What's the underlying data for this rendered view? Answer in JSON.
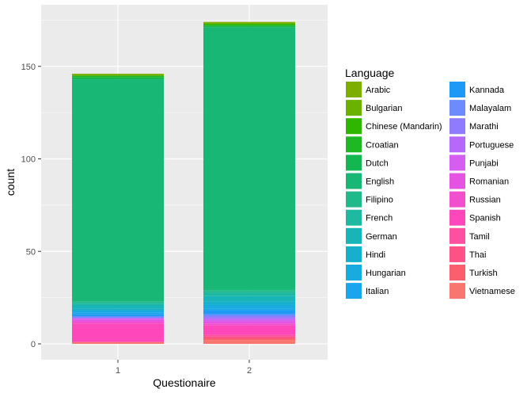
{
  "chart_data": {
    "type": "bar",
    "stacked": true,
    "xlabel": "Questionaire",
    "ylabel": "count",
    "categories": [
      "1",
      "2"
    ],
    "ylim": [
      0,
      180
    ],
    "yticks": [
      0,
      50,
      100,
      150
    ],
    "grid": true,
    "legend": {
      "title": "Language",
      "placement": "right",
      "columns": 2
    },
    "series": [
      {
        "name": "Arabic",
        "color": "#7CAE00",
        "values": [
          1,
          1
        ]
      },
      {
        "name": "Bulgarian",
        "color": "#6BB100",
        "values": [
          0,
          0
        ]
      },
      {
        "name": "Chinese (Mandarin)",
        "color": "#2FB600",
        "values": [
          0,
          1
        ]
      },
      {
        "name": "Croatian",
        "color": "#1FB822",
        "values": [
          1,
          0
        ]
      },
      {
        "name": "Dutch",
        "color": "#13B651",
        "values": [
          1,
          1
        ]
      },
      {
        "name": "English",
        "color": "#19B775",
        "values": [
          120,
          142
        ]
      },
      {
        "name": "Filipino",
        "color": "#20B98A",
        "values": [
          1,
          1
        ]
      },
      {
        "name": "French",
        "color": "#1FB8A0",
        "values": [
          1,
          2
        ]
      },
      {
        "name": "German",
        "color": "#18B5B8",
        "values": [
          2,
          3
        ]
      },
      {
        "name": "Hindi",
        "color": "#16B0CC",
        "values": [
          1,
          2
        ]
      },
      {
        "name": "Hungarian",
        "color": "#18ABDD",
        "values": [
          1,
          2
        ]
      },
      {
        "name": "Italian",
        "color": "#1AA5EC",
        "values": [
          1,
          1
        ]
      },
      {
        "name": "Kannada",
        "color": "#1E99F6",
        "values": [
          1,
          2
        ]
      },
      {
        "name": "Malayalam",
        "color": "#6D8AFE",
        "values": [
          1,
          1
        ]
      },
      {
        "name": "Marathi",
        "color": "#8F7BFF",
        "values": [
          0,
          1
        ]
      },
      {
        "name": "Portuguese",
        "color": "#B668FA",
        "values": [
          0,
          1
        ]
      },
      {
        "name": "Punjabi",
        "color": "#D55EF0",
        "values": [
          1,
          1
        ]
      },
      {
        "name": "Romanian",
        "color": "#E553E1",
        "values": [
          1,
          1
        ]
      },
      {
        "name": "Russian",
        "color": "#F24FCF",
        "values": [
          1,
          1
        ]
      },
      {
        "name": "Spanish",
        "color": "#FE47BA",
        "values": [
          10,
          5
        ]
      },
      {
        "name": "Tamil",
        "color": "#FF4FA0",
        "values": [
          0,
          1
        ]
      },
      {
        "name": "Thai",
        "color": "#FF5287",
        "values": [
          0,
          1
        ]
      },
      {
        "name": "Turkish",
        "color": "#FB5F6E",
        "values": [
          0,
          1
        ]
      },
      {
        "name": "Vietnamese",
        "color": "#F8766D",
        "values": [
          1,
          2
        ]
      }
    ]
  }
}
